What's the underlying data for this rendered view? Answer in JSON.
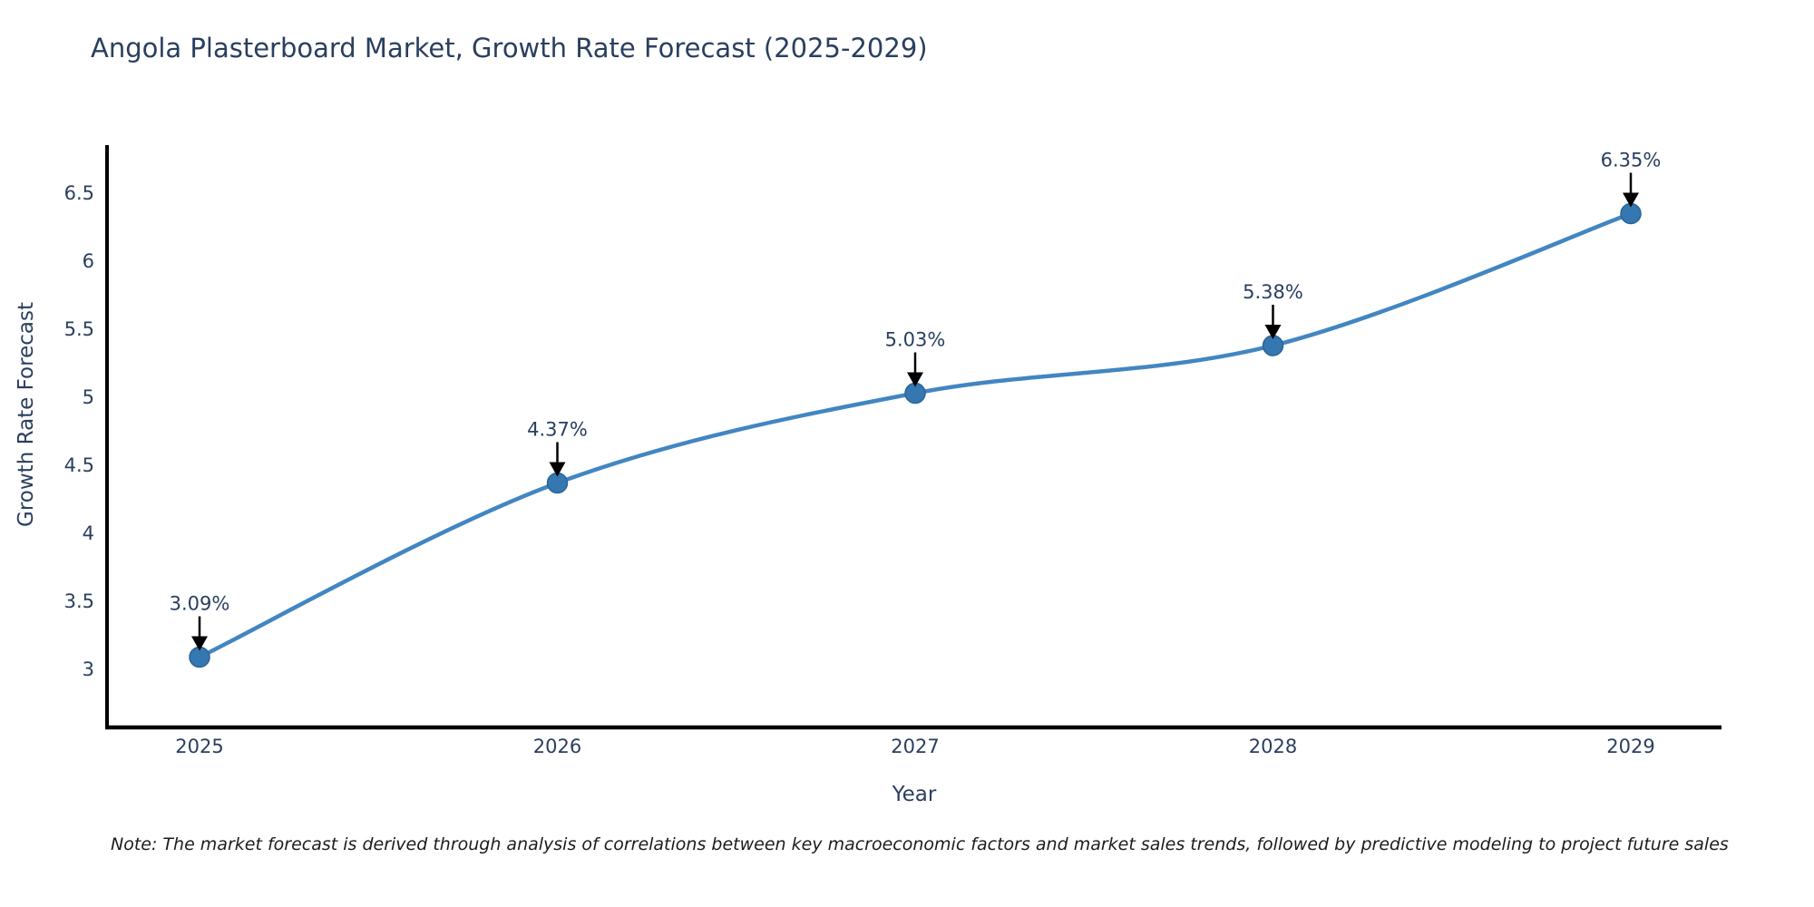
{
  "title": "Angola Plasterboard Market, Growth Rate Forecast (2025-2029)",
  "footnote": "Note: The market forecast is derived through analysis of correlations between key macroeconomic factors and market sales trends, followed by predictive modeling to project future sales",
  "chart_data": {
    "type": "line",
    "title": "Angola Plasterboard Market, Growth Rate Forecast (2025-2029)",
    "xlabel": "Year",
    "ylabel": "Growth Rate Forecast",
    "x": [
      "2025",
      "2026",
      "2027",
      "2028",
      "2029"
    ],
    "values": [
      3.09,
      4.37,
      5.03,
      5.38,
      6.35
    ],
    "point_labels": [
      "3.09%",
      "4.37%",
      "5.03%",
      "5.38%",
      "6.35%"
    ],
    "yticks": [
      3,
      3.5,
      4,
      4.5,
      5,
      5.5,
      6,
      6.5
    ],
    "ylim": [
      2.57,
      6.85
    ],
    "grid": false,
    "legend_position": "none",
    "line_shape": "spline",
    "colors": {
      "line": "#4286c1",
      "marker_fill": "#3577b1",
      "marker_edge": "#2b6398",
      "axis_line": "#000000",
      "arrow": "#000000",
      "text": "#2a3f5f",
      "note_text": "#1c1c1c",
      "background": "#ffffff"
    }
  }
}
